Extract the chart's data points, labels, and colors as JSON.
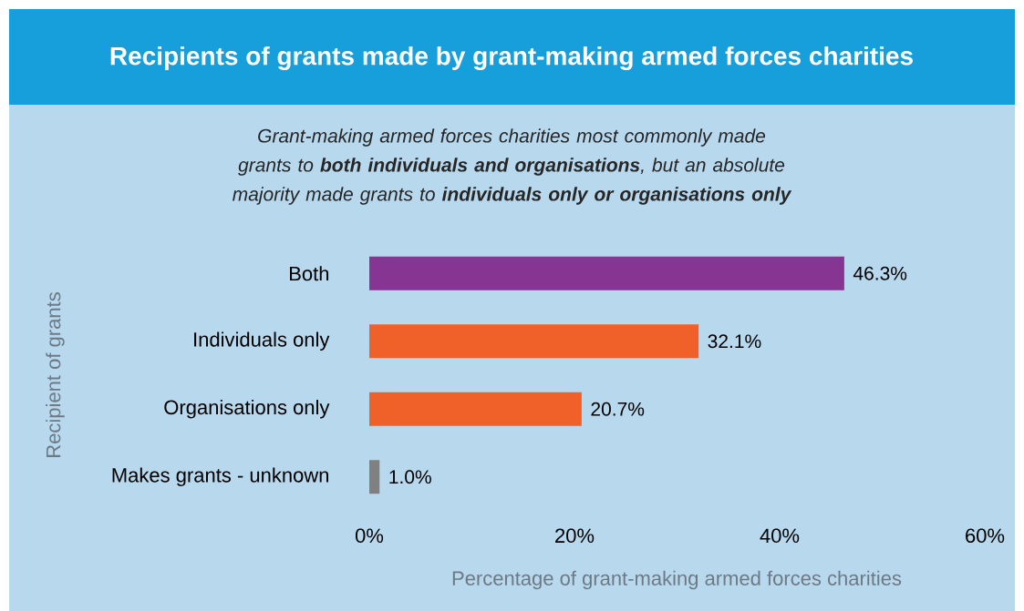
{
  "chart_data": {
    "type": "bar",
    "orientation": "horizontal",
    "title": "Recipients of grants made by grant-making armed forces charities",
    "subtitle": "Grant-making armed forces charities most commonly made grants to **both individuals and organisations**, but an absolute majority made grants to **individuals only or organisations only**",
    "xlabel": "Percentage of grant-making armed forces charities",
    "ylabel": "Recipient of grants",
    "categories": [
      "Both",
      "Individuals only",
      "Organisations only",
      "Makes grants - unknown"
    ],
    "values": [
      46.3,
      32.1,
      20.7,
      1.0
    ],
    "colors": [
      "#863593",
      "#f0612a",
      "#f0612a",
      "#808080"
    ],
    "value_labels": [
      "46.3%",
      "32.1%",
      "20.7%",
      "1.0%"
    ],
    "xlim": [
      0,
      60
    ],
    "xticks": [
      {
        "value": 0,
        "label": "0%"
      },
      {
        "value": 20,
        "label": "20%"
      },
      {
        "value": 40,
        "label": "40%"
      },
      {
        "value": 60,
        "label": "60%"
      }
    ]
  }
}
